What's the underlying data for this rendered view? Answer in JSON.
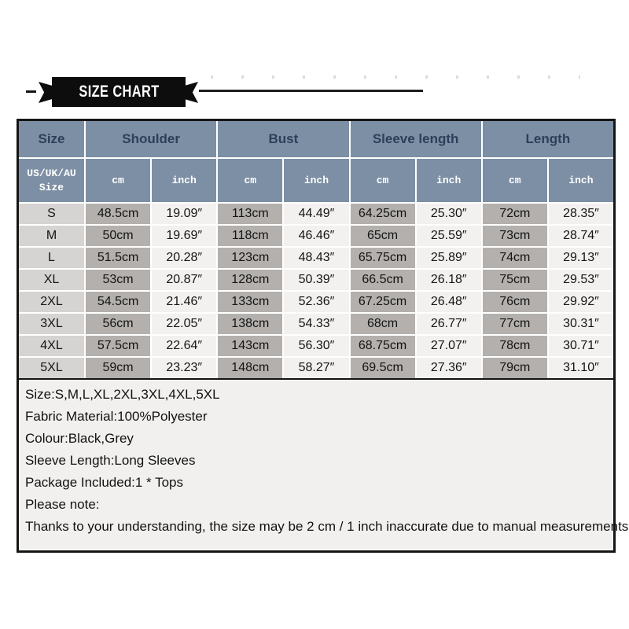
{
  "banner": {
    "title": "SIZE CHART"
  },
  "table": {
    "size_header": "Size",
    "sub_size_header": "US/UK/AU\nSize",
    "groups": [
      {
        "label": "Shoulder"
      },
      {
        "label": "Bust"
      },
      {
        "label": "Sleeve length"
      },
      {
        "label": "Length"
      }
    ],
    "unit_headers": [
      "cm",
      "inch",
      "cm",
      "inch",
      "cm",
      "inch",
      "cm",
      "inch"
    ],
    "rows": [
      {
        "size": "S",
        "values": [
          "48.5cm",
          "19.09″",
          "113cm",
          "44.49″",
          "64.25cm",
          "25.30″",
          "72cm",
          "28.35″"
        ]
      },
      {
        "size": "M",
        "values": [
          "50cm",
          "19.69″",
          "118cm",
          "46.46″",
          "65cm",
          "25.59″",
          "73cm",
          "28.74″"
        ]
      },
      {
        "size": "L",
        "values": [
          "51.5cm",
          "20.28″",
          "123cm",
          "48.43″",
          "65.75cm",
          "25.89″",
          "74cm",
          "29.13″"
        ]
      },
      {
        "size": "XL",
        "values": [
          "53cm",
          "20.87″",
          "128cm",
          "50.39″",
          "66.5cm",
          "26.18″",
          "75cm",
          "29.53″"
        ]
      },
      {
        "size": "2XL",
        "values": [
          "54.5cm",
          "21.46″",
          "133cm",
          "52.36″",
          "67.25cm",
          "26.48″",
          "76cm",
          "29.92″"
        ]
      },
      {
        "size": "3XL",
        "values": [
          "56cm",
          "22.05″",
          "138cm",
          "54.33″",
          "68cm",
          "26.77″",
          "77cm",
          "30.31″"
        ]
      },
      {
        "size": "4XL",
        "values": [
          "57.5cm",
          "22.64″",
          "143cm",
          "56.30″",
          "68.75cm",
          "27.07″",
          "78cm",
          "30.71″"
        ]
      },
      {
        "size": "5XL",
        "values": [
          "59cm",
          "23.23″",
          "148cm",
          "58.27″",
          "69.5cm",
          "27.36″",
          "79cm",
          "31.10″"
        ]
      }
    ]
  },
  "info": {
    "lines": [
      "Size:S,M,L,XL,2XL,3XL,4XL,5XL",
      "Fabric Material:100%Polyester",
      "Colour:Black,Grey",
      "Sleeve Length:Long Sleeves",
      "Package Included:1 * Tops",
      "Please note:",
      "Thanks to your understanding, the size may be 2 cm / 1 inch inaccurate due to manual measurements."
    ]
  },
  "colors": {
    "header_bg": "#7d8fa4",
    "header_text": "#2c3f5a",
    "unit_text": "#ffffff",
    "size_col_bg": "#d5d4d3",
    "cm_col_bg": "#b3b0ad",
    "inch_col_bg": "#f2f1ef",
    "info_bg": "#f1f0ee",
    "border": "#151515",
    "banner_bg": "#0d0d0d",
    "banner_text": "#ffffff"
  }
}
